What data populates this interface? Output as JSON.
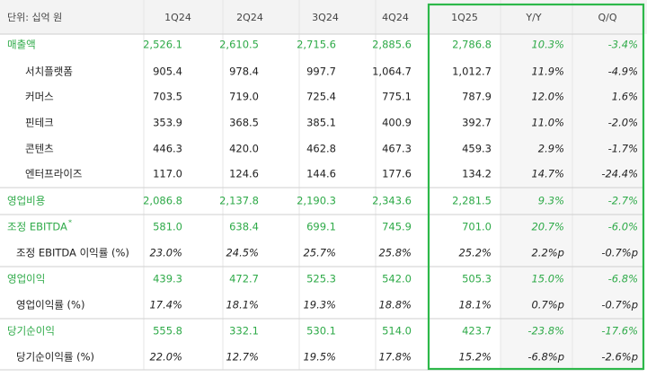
{
  "header": {
    "unit": "단위: 십억 원",
    "columns": [
      "1Q24",
      "2Q24",
      "3Q24",
      "4Q24",
      "1Q25",
      "Y/Y",
      "Q/Q"
    ]
  },
  "rows": [
    {
      "label": "매출액",
      "values": [
        "2,526.1",
        "2,610.5",
        "2,715.6",
        "2,885.6",
        "2,786.8",
        "10.3%",
        "-3.4%"
      ]
    },
    {
      "label": "서치플랫폼",
      "values": [
        "905.4",
        "978.4",
        "997.7",
        "1,064.7",
        "1,012.7",
        "11.9%",
        "-4.9%"
      ]
    },
    {
      "label": "커머스",
      "values": [
        "703.5",
        "719.0",
        "725.4",
        "775.1",
        "787.9",
        "12.0%",
        "1.6%"
      ]
    },
    {
      "label": "핀테크",
      "values": [
        "353.9",
        "368.5",
        "385.1",
        "400.9",
        "392.7",
        "11.0%",
        "-2.0%"
      ]
    },
    {
      "label": "콘텐츠",
      "values": [
        "446.3",
        "420.0",
        "462.8",
        "467.3",
        "459.3",
        "2.9%",
        "-1.7%"
      ]
    },
    {
      "label": "엔터프라이즈",
      "values": [
        "117.0",
        "124.6",
        "144.6",
        "177.6",
        "134.2",
        "14.7%",
        "-24.4%"
      ]
    },
    {
      "label": "영업비용",
      "values": [
        "2,086.8",
        "2,137.8",
        "2,190.3",
        "2,343.6",
        "2,281.5",
        "9.3%",
        "-2.7%"
      ]
    },
    {
      "label": "조정 EBITDA",
      "footnote_mark": "*",
      "values": [
        "581.0",
        "638.4",
        "699.1",
        "745.9",
        "701.0",
        "20.7%",
        "-6.0%"
      ]
    },
    {
      "label": "조정 EBITDA 이익률 (%)",
      "values": [
        "23.0%",
        "24.5%",
        "25.7%",
        "25.8%",
        "25.2%",
        "2.2%p",
        "-0.7%p"
      ]
    },
    {
      "label": "영업이익",
      "values": [
        "439.3",
        "472.7",
        "525.3",
        "542.0",
        "505.3",
        "15.0%",
        "-6.8%"
      ]
    },
    {
      "label": "영업이익률 (%)",
      "values": [
        "17.4%",
        "18.1%",
        "19.3%",
        "18.8%",
        "18.1%",
        "0.7%p",
        "-0.7%p"
      ]
    },
    {
      "label": "당기순이익",
      "values": [
        "555.8",
        "332.1",
        "530.1",
        "514.0",
        "423.7",
        "-23.8%",
        "-17.6%"
      ]
    },
    {
      "label": "당기순이익률 (%)",
      "values": [
        "22.0%",
        "12.7%",
        "19.5%",
        "17.8%",
        "15.2%",
        "-6.8%p",
        "-2.6%p"
      ]
    }
  ]
}
